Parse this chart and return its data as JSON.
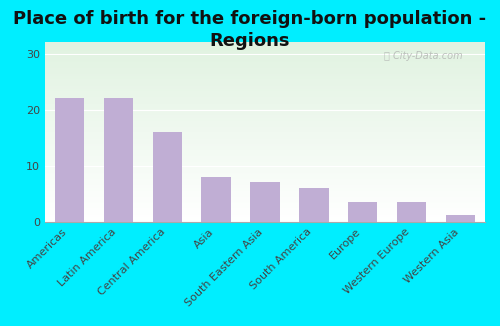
{
  "title": "Place of birth for the foreign-born population -\nRegions",
  "categories": [
    "Americas",
    "Latin America",
    "Central America",
    "Asia",
    "South Eastern Asia",
    "South America",
    "Europe",
    "Western Europe",
    "Western Asia"
  ],
  "values": [
    22,
    22,
    16,
    8,
    7,
    6,
    3.5,
    3.5,
    1.2
  ],
  "bar_color": "#c0aed4",
  "background_color": "#00eeff",
  "yticks": [
    0,
    10,
    20,
    30
  ],
  "ylim": [
    0,
    32
  ],
  "title_fontsize": 13,
  "tick_fontsize": 8,
  "watermark": "ⓘ City-Data.com"
}
